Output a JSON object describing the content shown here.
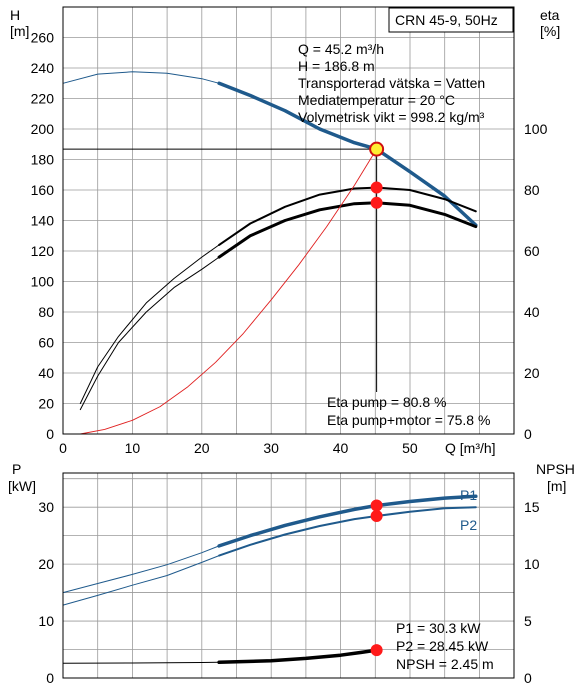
{
  "chart_data": [
    {
      "type": "line",
      "title": "CRN 45-9, 50Hz",
      "xlabel": "Q [m³/h]",
      "xlim": [
        0,
        65
      ],
      "x_ticks": [
        0,
        10,
        20,
        30,
        40,
        50
      ],
      "left_axis": {
        "label_line1": "H",
        "label_line2": "[m]",
        "ylim": [
          0,
          280
        ],
        "ticks": [
          0,
          20,
          40,
          60,
          80,
          100,
          120,
          140,
          160,
          180,
          200,
          220,
          240,
          260
        ]
      },
      "right_axis": {
        "label_line1": "eta",
        "label_line2": "[%]",
        "ticks": [
          0,
          20,
          40,
          60,
          80,
          100
        ]
      },
      "info_lines": [
        "Q = 45.2 m³/h",
        "H = 186.8 m",
        "Transporterad vätska = Vatten",
        "Mediatemperatur = 20 °C",
        "Volymetrisk vikt = 998.2 kg/m³"
      ],
      "eta_lines": [
        "Eta pump = 80.8 %",
        "Eta pump+motor = 75.8 %"
      ],
      "duty_point": {
        "x": 45.2,
        "y": 186.8
      },
      "series": [
        {
          "key": "H-thin",
          "x": [
            0,
            5,
            10,
            15,
            20,
            22.5
          ],
          "y": [
            230,
            236,
            237.5,
            236.5,
            233,
            230
          ]
        },
        {
          "key": "H-thick",
          "x": [
            22.5,
            27,
            32,
            37,
            42,
            45.2,
            50,
            55,
            59.5
          ],
          "y": [
            230,
            222,
            212,
            200,
            191,
            186.8,
            172,
            156,
            137
          ]
        },
        {
          "key": "eta-pump-thin",
          "x": [
            2.5,
            5,
            8,
            12,
            16,
            20,
            22.5
          ],
          "y": [
            10,
            22,
            32,
            43,
            51,
            58,
            62
          ]
        },
        {
          "key": "eta-pump-thick",
          "x": [
            22.5,
            27,
            32,
            37,
            42,
            45.2,
            50,
            55,
            59.5
          ],
          "y": [
            62,
            69,
            74.5,
            78.5,
            80.5,
            80.8,
            80,
            77,
            73
          ]
        },
        {
          "key": "eta-total-thin",
          "x": [
            2.5,
            5,
            8,
            12,
            16,
            20,
            22.5
          ],
          "y": [
            8,
            19,
            30,
            40,
            48,
            54,
            58
          ]
        },
        {
          "key": "eta-total-thick",
          "x": [
            22.5,
            27,
            32,
            37,
            42,
            45.2,
            50,
            55,
            59.5
          ],
          "y": [
            58,
            65,
            70,
            73.5,
            75.5,
            75.8,
            75,
            72,
            68
          ]
        },
        {
          "key": "system-curve",
          "x": [
            2.5,
            6,
            10,
            14,
            18,
            22,
            26,
            30,
            34,
            38,
            42,
            45.2
          ],
          "y": [
            0,
            3,
            9,
            18,
            31,
            47,
            66,
            88,
            111,
            136,
            163,
            186.8
          ]
        }
      ],
      "markers": [
        {
          "axis": "right",
          "x": 45.2,
          "y": 80.8
        },
        {
          "axis": "right",
          "x": 45.2,
          "y": 75.8
        }
      ]
    },
    {
      "type": "line",
      "xlim": [
        0,
        65
      ],
      "x_ticks": [
        0,
        10,
        20,
        30,
        40,
        50
      ],
      "left_axis": {
        "label_line1": "P",
        "label_line2": "[kW]",
        "ylim": [
          0,
          36
        ],
        "ticks": [
          0,
          10,
          20,
          30
        ]
      },
      "right_axis": {
        "label_line1": "NPSH",
        "label_line2": "[m]",
        "ticks": [
          0,
          5,
          10,
          15
        ]
      },
      "info_lines": [
        "P1 = 30.3 kW",
        "P2 = 28.45 kW",
        "NPSH = 2.45 m"
      ],
      "series": [
        {
          "key": "P1-thin",
          "name": "P1",
          "x": [
            0,
            5,
            10,
            15,
            20,
            22.5
          ],
          "y": [
            15,
            16.6,
            18.2,
            19.9,
            22,
            23.2
          ]
        },
        {
          "key": "P1-thick",
          "x": [
            22.5,
            27,
            32,
            37,
            42,
            45.2,
            50,
            55,
            59.5
          ],
          "y": [
            23.2,
            25,
            26.8,
            28.3,
            29.6,
            30.3,
            31,
            31.6,
            31.9
          ]
        },
        {
          "key": "P2-thin",
          "name": "P2",
          "x": [
            0,
            5,
            10,
            15,
            20,
            22.5
          ],
          "y": [
            12.8,
            14.5,
            16.3,
            18,
            20.3,
            21.5
          ]
        },
        {
          "key": "P2-thick",
          "x": [
            22.5,
            27,
            32,
            37,
            42,
            45.2,
            50,
            55,
            59.5
          ],
          "y": [
            21.5,
            23.4,
            25.2,
            26.7,
            27.9,
            28.45,
            29.2,
            29.8,
            30
          ]
        },
        {
          "key": "NPSH-thin",
          "x": [
            0,
            10,
            20,
            22.5
          ],
          "y": [
            1.3,
            1.32,
            1.36,
            1.38
          ]
        },
        {
          "key": "NPSH-thick",
          "x": [
            22.5,
            30,
            35,
            40,
            43,
            45.2
          ],
          "y": [
            1.38,
            1.52,
            1.72,
            2.0,
            2.25,
            2.45
          ]
        }
      ],
      "markers": [
        {
          "axis": "left",
          "x": 45.2,
          "y": 30.3
        },
        {
          "axis": "left",
          "x": 45.2,
          "y": 28.45
        },
        {
          "axis": "right",
          "x": 45.2,
          "y": 2.45
        }
      ]
    }
  ]
}
